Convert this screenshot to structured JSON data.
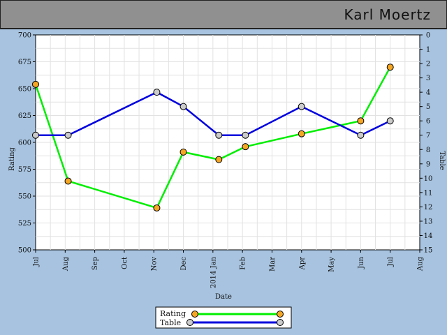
{
  "header": {
    "title": "Karl Moertz"
  },
  "chart_data": {
    "type": "line",
    "xlabel": "Date",
    "ylabel": "Rating",
    "y2label": "Table",
    "ylim": [
      500,
      700
    ],
    "yticks": [
      500,
      525,
      550,
      575,
      600,
      625,
      650,
      675,
      700
    ],
    "y2lim": [
      0,
      15
    ],
    "y2ticks": [
      0,
      1,
      2,
      3,
      4,
      5,
      6,
      7,
      8,
      9,
      10,
      11,
      12,
      13,
      14,
      15
    ],
    "y2_inverted": true,
    "x_ticks": [
      "Jul",
      "Aug",
      "Sep",
      "Oct",
      "Nov",
      "Dec",
      "2014 Jan",
      "Feb",
      "Mar",
      "Apr",
      "May",
      "Jun",
      "Jul",
      "Aug"
    ],
    "x_range_months": [
      0,
      13
    ],
    "grid": true,
    "legend_position": "bottom-center",
    "series": [
      {
        "name": "Rating",
        "axis": "left",
        "color": "#00ee00",
        "marker_color": "#f5a623",
        "points": [
          {
            "x": 0.0,
            "y": 654
          },
          {
            "x": 1.1,
            "y": 564
          },
          {
            "x": 4.1,
            "y": 539
          },
          {
            "x": 5.0,
            "y": 591
          },
          {
            "x": 6.2,
            "y": 584
          },
          {
            "x": 7.1,
            "y": 596
          },
          {
            "x": 9.0,
            "y": 608
          },
          {
            "x": 11.0,
            "y": 620
          },
          {
            "x": 12.0,
            "y": 670
          }
        ]
      },
      {
        "name": "Table",
        "axis": "right",
        "color": "#0000dd",
        "marker_color": "#cccccc",
        "points": [
          {
            "x": 0.0,
            "y": 7
          },
          {
            "x": 1.1,
            "y": 7
          },
          {
            "x": 4.1,
            "y": 4
          },
          {
            "x": 5.0,
            "y": 5
          },
          {
            "x": 6.2,
            "y": 7
          },
          {
            "x": 7.1,
            "y": 7
          },
          {
            "x": 9.0,
            "y": 5
          },
          {
            "x": 11.0,
            "y": 7
          },
          {
            "x": 12.0,
            "y": 6
          }
        ]
      }
    ]
  }
}
